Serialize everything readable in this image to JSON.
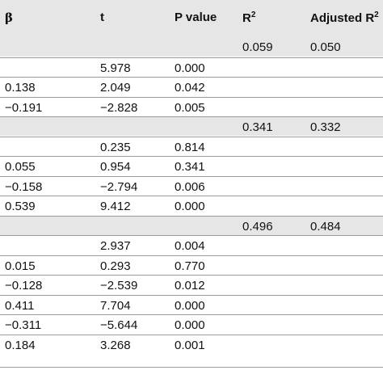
{
  "header": {
    "beta": "β",
    "t": "t",
    "p_value": "P value",
    "r": "R",
    "r_sup": "2",
    "adjusted_r": "Adjusted R",
    "adjusted_r_sup": "2"
  },
  "rows": [
    {
      "group": true,
      "beta": "",
      "t": "",
      "p": "",
      "r2": "0.059",
      "adj": "0.050"
    },
    {
      "group": false,
      "beta": "",
      "t": "5.978",
      "p": "0.000",
      "r2": "",
      "adj": ""
    },
    {
      "group": false,
      "beta": "0.138",
      "t": "2.049",
      "p": "0.042",
      "r2": "",
      "adj": ""
    },
    {
      "group": false,
      "beta": "−0.191",
      "t": "−2.828",
      "p": "0.005",
      "r2": "",
      "adj": ""
    },
    {
      "group": true,
      "beta": "",
      "t": "",
      "p": "",
      "r2": "0.341",
      "adj": "0.332"
    },
    {
      "group": false,
      "beta": "",
      "t": "0.235",
      "p": "0.814",
      "r2": "",
      "adj": ""
    },
    {
      "group": false,
      "beta": "0.055",
      "t": "0.954",
      "p": "0.341",
      "r2": "",
      "adj": ""
    },
    {
      "group": false,
      "beta": "−0.158",
      "t": "−2.794",
      "p": "0.006",
      "r2": "",
      "adj": ""
    },
    {
      "group": false,
      "beta": "0.539",
      "t": "9.412",
      "p": "0.000",
      "r2": "",
      "adj": ""
    },
    {
      "group": true,
      "beta": "",
      "t": "",
      "p": "",
      "r2": "0.496",
      "adj": "0.484"
    },
    {
      "group": false,
      "beta": "",
      "t": "2.937",
      "p": "0.004",
      "r2": "",
      "adj": ""
    },
    {
      "group": false,
      "beta": "0.015",
      "t": "0.293",
      "p": "0.770",
      "r2": "",
      "adj": ""
    },
    {
      "group": false,
      "beta": "−0.128",
      "t": "−2.539",
      "p": "0.012",
      "r2": "",
      "adj": ""
    },
    {
      "group": false,
      "beta": "0.411",
      "t": "7.704",
      "p": "0.000",
      "r2": "",
      "adj": ""
    },
    {
      "group": false,
      "beta": "−0.311",
      "t": "−5.644",
      "p": "0.000",
      "r2": "",
      "adj": ""
    },
    {
      "group": false,
      "beta": "0.184",
      "t": "3.268",
      "p": "0.001",
      "r2": "",
      "adj": ""
    }
  ]
}
